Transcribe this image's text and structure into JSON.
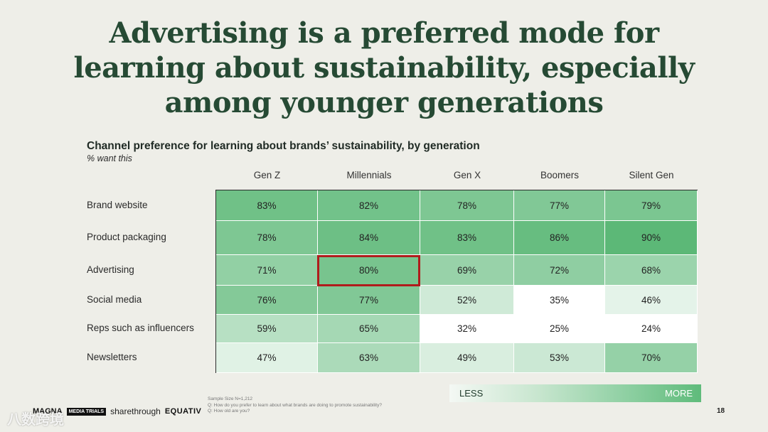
{
  "title_lines": [
    "Advertising is a preferred mode for",
    "learning about sustainability, especially",
    "among younger generations"
  ],
  "chart_data": {
    "type": "heatmap",
    "title": "Channel preference for learning about brands’ sustainability, by generation",
    "subtitle": "% want this",
    "columns": [
      "Gen Z",
      "Millennials",
      "Gen X",
      "Boomers",
      "Silent Gen"
    ],
    "rows": [
      "Brand website",
      "Product packaging",
      "Advertising",
      "Social media",
      "Reps such as influencers",
      "Newsletters"
    ],
    "values": [
      [
        83,
        82,
        78,
        77,
        79
      ],
      [
        78,
        84,
        83,
        86,
        90
      ],
      [
        71,
        80,
        69,
        72,
        68
      ],
      [
        76,
        77,
        52,
        35,
        46
      ],
      [
        59,
        65,
        32,
        25,
        24
      ],
      [
        47,
        63,
        49,
        53,
        70
      ]
    ],
    "value_suffix": "%",
    "highlighted_cell": {
      "row": "Advertising",
      "column": "Millennials"
    },
    "legend": {
      "low_label": "LESS",
      "high_label": "MORE"
    },
    "colors": {
      "low": "#ffffff",
      "high": "#5cb877",
      "highlight_border": "#b01c1c"
    }
  },
  "footnotes": [
    "Sample Size N=1,212",
    "Q: How do you prefer to learn about what brands are doing to promote sustainability?",
    "Q: How old are you?"
  ],
  "page_number": "18",
  "logos": {
    "brand1": "MAGNA",
    "brand2": "MEDIA TRIALS",
    "partner1": "sharethrough",
    "partner2": "EQUATIV"
  },
  "watermark": "八数跨境"
}
